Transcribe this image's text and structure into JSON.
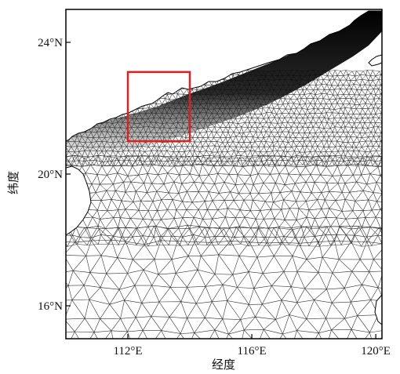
{
  "chart_data": {
    "type": "map",
    "title": "",
    "xlabel": "经度",
    "ylabel": "纬度",
    "xlim": [
      110,
      120.2
    ],
    "ylim": [
      15,
      25
    ],
    "x_ticks": [
      {
        "value": 112,
        "label": "112°E"
      },
      {
        "value": 116,
        "label": "116°E"
      },
      {
        "value": 120,
        "label": "120°E"
      }
    ],
    "y_ticks": [
      {
        "value": 24,
        "label": "24°N"
      },
      {
        "value": 20,
        "label": "20°N"
      },
      {
        "value": 16,
        "label": "16°N"
      }
    ],
    "highlight_box": {
      "lon": [
        112,
        114
      ],
      "lat": [
        21,
        23.1
      ],
      "color": "#e02020"
    },
    "mesh": "unstructured triangular grid, densely refined toward the southern China coastline",
    "colors": {
      "mesh_line": "#333333",
      "land": "#ffffff",
      "coast_dense": "#000000",
      "box": "#e02020"
    }
  }
}
